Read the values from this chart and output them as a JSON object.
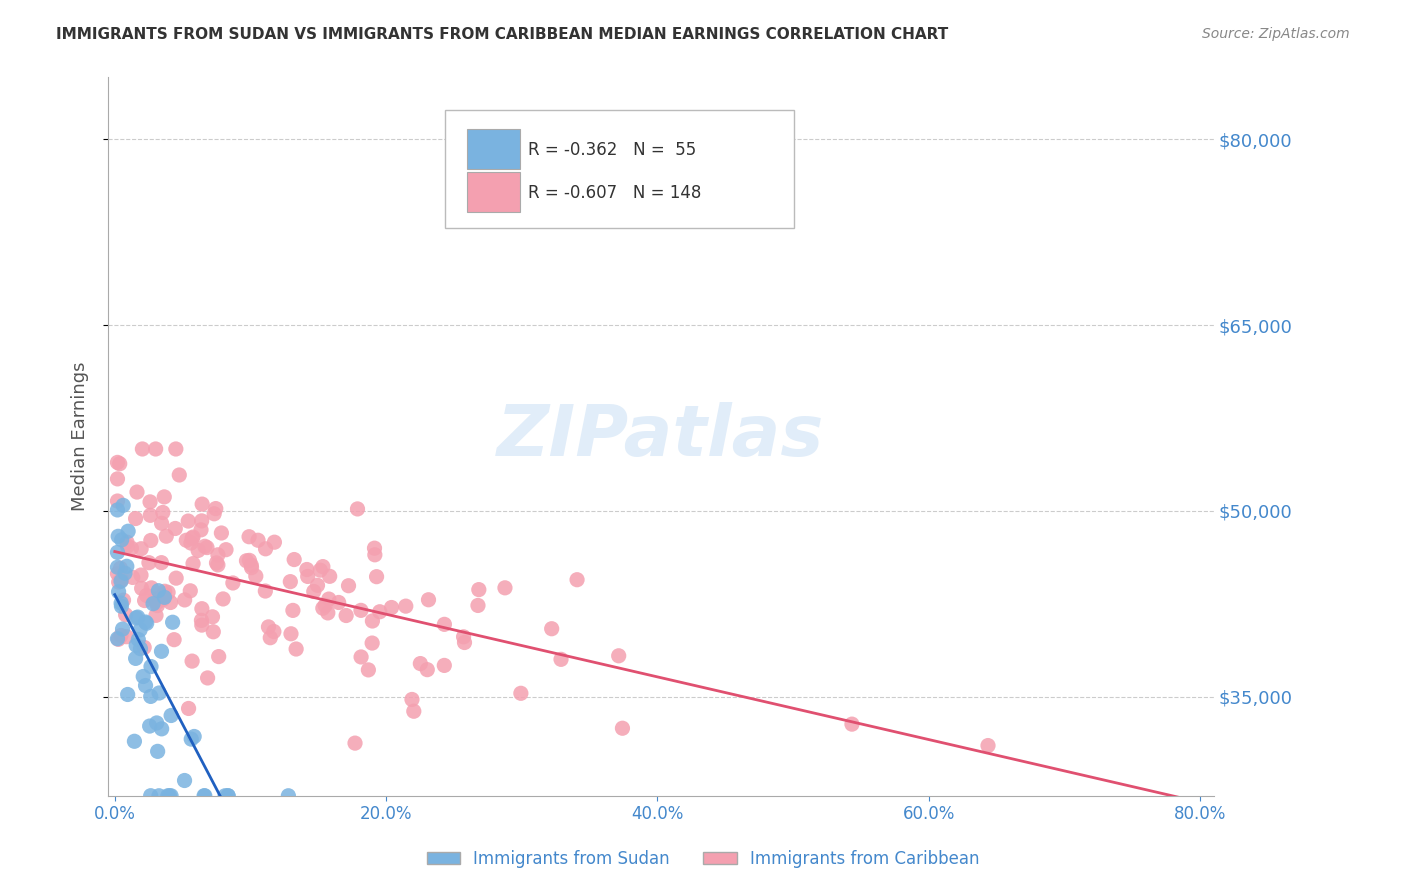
{
  "title": "IMMIGRANTS FROM SUDAN VS IMMIGRANTS FROM CARIBBEAN MEDIAN EARNINGS CORRELATION CHART",
  "source": "Source: ZipAtlas.com",
  "ylabel": "Median Earnings",
  "yticks": [
    35000,
    50000,
    65000,
    80000
  ],
  "ytick_labels": [
    "$35,000",
    "$50,000",
    "$65,000",
    "$80,000"
  ],
  "xlim": [
    0.0,
    0.8
  ],
  "ylim": [
    27000,
    85000
  ],
  "xtick_labels": [
    "0.0%",
    "20.0%",
    "40.0%",
    "60.0%",
    "80.0%"
  ],
  "xticks": [
    0.0,
    0.2,
    0.4,
    0.6,
    0.8
  ],
  "sudan_R": -0.362,
  "sudan_N": 55,
  "caribbean_R": -0.607,
  "caribbean_N": 148,
  "sudan_color": "#7ab3e0",
  "caribbean_color": "#f4a0b0",
  "sudan_line_color": "#2060c0",
  "caribbean_line_color": "#e05070",
  "background_color": "#ffffff",
  "grid_color": "#cccccc",
  "title_color": "#333333",
  "source_color": "#888888",
  "axis_label_color": "#555555",
  "tick_label_color": "#4488cc",
  "legend_label_sudan": "Immigrants from Sudan",
  "legend_label_caribbean": "Immigrants from Caribbean",
  "watermark": "ZIPatlas",
  "watermark_color": "#aaccee"
}
